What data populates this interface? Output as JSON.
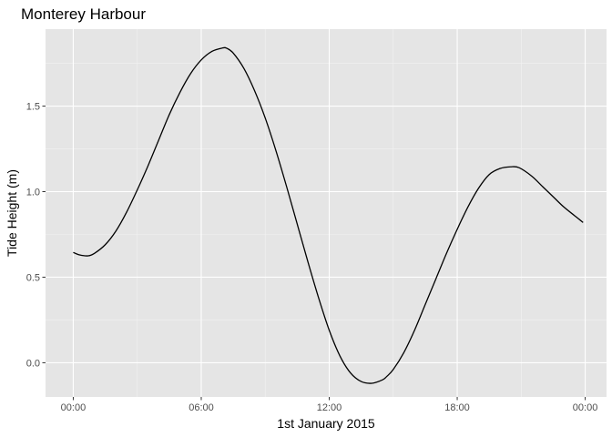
{
  "chart_data": {
    "type": "line",
    "title": "Monterey Harbour",
    "xlabel": "1st January 2015",
    "ylabel": "Tide Height (m)",
    "xlim": [
      -1.3,
      25.0
    ],
    "ylim": [
      -0.2,
      1.95
    ],
    "x_ticks": [
      {
        "value": 0,
        "label": "00:00"
      },
      {
        "value": 6,
        "label": "06:00"
      },
      {
        "value": 12,
        "label": "12:00"
      },
      {
        "value": 18,
        "label": "18:00"
      },
      {
        "value": 24,
        "label": "00:00"
      }
    ],
    "y_ticks": [
      {
        "value": 0.0,
        "label": "0.0"
      },
      {
        "value": 0.5,
        "label": "0.5"
      },
      {
        "value": 1.0,
        "label": "1.0"
      },
      {
        "value": 1.5,
        "label": "1.5"
      }
    ],
    "grid": true,
    "series": [
      {
        "color": "#000000",
        "x": [
          0,
          0.3,
          0.7,
          1.0,
          1.5,
          2.0,
          2.5,
          3.0,
          3.5,
          4.0,
          4.5,
          5.0,
          5.5,
          6.0,
          6.5,
          7.0,
          7.2,
          7.5,
          8.0,
          8.5,
          9.0,
          9.5,
          10.0,
          10.5,
          11.0,
          11.5,
          12.0,
          12.5,
          13.0,
          13.5,
          14.0,
          14.5,
          14.7,
          15.0,
          15.5,
          16.0,
          16.5,
          17.0,
          17.5,
          18.0,
          18.5,
          19.0,
          19.5,
          20.0,
          20.5,
          20.9,
          21.5,
          22.0,
          22.5,
          23.0,
          23.5,
          23.9
        ],
        "y": [
          0.645,
          0.63,
          0.625,
          0.64,
          0.69,
          0.77,
          0.88,
          1.01,
          1.15,
          1.3,
          1.45,
          1.58,
          1.69,
          1.77,
          1.82,
          1.84,
          1.838,
          1.81,
          1.72,
          1.59,
          1.43,
          1.24,
          1.03,
          0.81,
          0.59,
          0.38,
          0.19,
          0.04,
          -0.06,
          -0.11,
          -0.12,
          -0.1,
          -0.08,
          -0.04,
          0.06,
          0.19,
          0.34,
          0.49,
          0.64,
          0.78,
          0.91,
          1.02,
          1.1,
          1.135,
          1.145,
          1.14,
          1.09,
          1.03,
          0.97,
          0.91,
          0.86,
          0.82
        ]
      }
    ]
  },
  "colors": {
    "panel_background": "#e5e5e5",
    "grid_major": "#ffffff",
    "grid_minor": "#f2f2f2",
    "line": "#000000"
  }
}
